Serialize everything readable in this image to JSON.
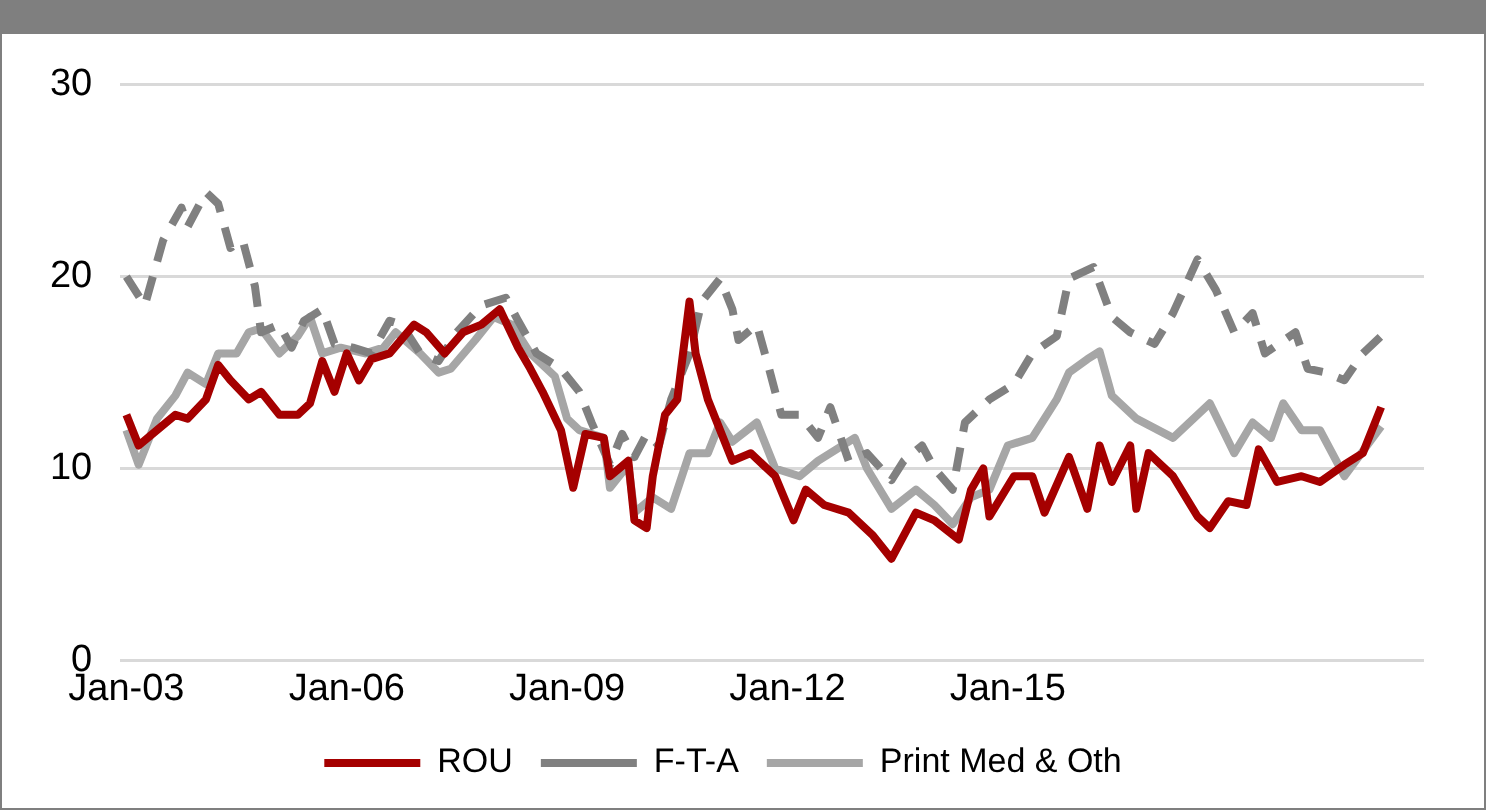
{
  "chart_data": {
    "type": "line",
    "xlim": [
      "2002-12",
      "2020-09"
    ],
    "ylim": [
      0,
      30
    ],
    "yticks": [
      0,
      10,
      20,
      30
    ],
    "xticks": [
      {
        "value": "2003-01",
        "label": "Jan-03"
      },
      {
        "value": "2006-01",
        "label": "Jan-06"
      },
      {
        "value": "2009-01",
        "label": "Jan-09"
      },
      {
        "value": "2012-01",
        "label": "Jan-12"
      },
      {
        "value": "2015-01",
        "label": "Jan-15"
      }
    ],
    "grid": "y",
    "legend": "bottom",
    "marker": "none",
    "series": [
      {
        "name": "ROU",
        "color": "#a50000",
        "line_style": "solid",
        "x": [
          "2003-01",
          "2003-03",
          "2003-06",
          "2003-09",
          "2003-11",
          "2004-02",
          "2004-04",
          "2004-06",
          "2004-09",
          "2004-11",
          "2005-02",
          "2005-05",
          "2005-07",
          "2005-09",
          "2005-11",
          "2006-01",
          "2006-03",
          "2006-05",
          "2006-08",
          "2006-12",
          "2007-02",
          "2007-05",
          "2007-08",
          "2007-11",
          "2008-02",
          "2008-05",
          "2008-07",
          "2008-09",
          "2008-12",
          "2009-02",
          "2009-04",
          "2009-07",
          "2009-08",
          "2009-11",
          "2009-12",
          "2010-02",
          "2010-03",
          "2010-05",
          "2010-07",
          "2010-09",
          "2010-10",
          "2010-12",
          "2011-04",
          "2011-07",
          "2011-11",
          "2012-02",
          "2012-04",
          "2012-07",
          "2012-11",
          "2013-03",
          "2013-06",
          "2013-10",
          "2014-01",
          "2014-05",
          "2014-07",
          "2014-09",
          "2014-10",
          "2015-02",
          "2015-05",
          "2015-07",
          "2015-11",
          "2016-02",
          "2016-04",
          "2016-06",
          "2016-09",
          "2016-10",
          "2016-12",
          "2017-04",
          "2017-08",
          "2017-10",
          "2018-01",
          "2018-04",
          "2018-06",
          "2018-09",
          "2019-01",
          "2019-04",
          "2019-08",
          "2019-11",
          "2020-02"
        ],
        "values": [
          12.8,
          11.2,
          12,
          12.8,
          12.6,
          13.6,
          15.4,
          14.6,
          13.6,
          14,
          12.8,
          12.8,
          13.4,
          15.6,
          14,
          16,
          14.6,
          15.7,
          16,
          17.5,
          17.1,
          16,
          17.1,
          17.5,
          18.3,
          16.3,
          15.2,
          14,
          12,
          9,
          11.8,
          11.6,
          9.6,
          10.4,
          7.3,
          6.9,
          9.6,
          12.8,
          13.6,
          18.7,
          16,
          13.6,
          10.4,
          10.8,
          9.6,
          7.3,
          8.9,
          8.1,
          7.7,
          6.5,
          5.3,
          7.7,
          7.3,
          6.3,
          8.9,
          10,
          7.5,
          9.6,
          9.6,
          7.7,
          10.6,
          7.9,
          11.2,
          9.3,
          11.2,
          7.9,
          10.8,
          9.6,
          7.5,
          6.9,
          8.3,
          8.1,
          11,
          9.3,
          9.6,
          9.3,
          10.2,
          10.8,
          13.2
        ]
      },
      {
        "name": "F-T-A",
        "color": "#808080",
        "line_style": "dashed",
        "x": [
          "2003-01",
          "2003-04",
          "2003-07",
          "2003-10",
          "2003-11",
          "2004-02",
          "2004-04",
          "2004-06",
          "2004-08",
          "2004-10",
          "2004-11",
          "2005-02",
          "2005-04",
          "2005-06",
          "2005-09",
          "2005-11",
          "2006-02",
          "2006-05",
          "2006-08",
          "2006-10",
          "2007-01",
          "2007-04",
          "2007-07",
          "2007-11",
          "2008-03",
          "2008-05",
          "2008-08",
          "2008-12",
          "2009-03",
          "2009-05",
          "2009-08",
          "2009-10",
          "2009-12",
          "2010-02",
          "2010-04",
          "2010-06",
          "2010-09",
          "2010-11",
          "2011-02",
          "2011-04",
          "2011-05",
          "2011-08",
          "2011-10",
          "2011-12",
          "2012-03",
          "2012-06",
          "2012-08",
          "2012-11",
          "2013-02",
          "2013-06",
          "2013-08",
          "2013-11",
          "2014-01",
          "2014-04",
          "2014-06",
          "2014-10",
          "2015-02",
          "2015-05",
          "2015-09",
          "2015-11",
          "2016-03",
          "2016-06",
          "2016-09",
          "2017-01",
          "2017-04",
          "2017-08",
          "2017-11",
          "2018-02",
          "2018-05",
          "2018-07",
          "2018-12",
          "2019-02",
          "2019-05",
          "2019-08",
          "2019-11",
          "2020-02"
        ],
        "values": [
          20,
          18.5,
          21.9,
          23.6,
          22.6,
          24.4,
          23.8,
          21.5,
          21.9,
          19.5,
          17.1,
          17.5,
          16.3,
          17.7,
          18.3,
          16.5,
          16.3,
          16,
          17.7,
          17.5,
          16,
          15.6,
          17.1,
          18.5,
          18.9,
          17.7,
          16,
          15.2,
          14,
          12.4,
          10.2,
          11.8,
          10.6,
          11.8,
          11.2,
          13.6,
          16,
          18.7,
          19.9,
          18.3,
          16.7,
          17.5,
          15.2,
          12.8,
          12.8,
          11.6,
          13.2,
          10.4,
          10.8,
          9.4,
          10.4,
          11.2,
          10,
          8.9,
          12.4,
          13.6,
          14.4,
          16,
          16.9,
          19.9,
          20.5,
          17.9,
          17.1,
          16.5,
          18.1,
          20.9,
          19.3,
          17.1,
          18.1,
          16,
          17.1,
          15.2,
          15,
          14.6,
          16,
          16.9
        ]
      },
      {
        "name": "Print Med & Oth",
        "color": "#a6a6a6",
        "line_style": "solid",
        "x": [
          "2003-01",
          "2003-03",
          "2003-06",
          "2003-09",
          "2003-11",
          "2004-02",
          "2004-04",
          "2004-07",
          "2004-09",
          "2004-11",
          "2005-02",
          "2005-05",
          "2005-07",
          "2005-09",
          "2005-12",
          "2006-04",
          "2006-07",
          "2006-09",
          "2007-01",
          "2007-04",
          "2007-06",
          "2007-10",
          "2008-01",
          "2008-04",
          "2008-07",
          "2008-11",
          "2009-01",
          "2009-03",
          "2009-07",
          "2009-08",
          "2009-11",
          "2009-12",
          "2010-03",
          "2010-06",
          "2010-09",
          "2010-12",
          "2011-02",
          "2011-04",
          "2011-08",
          "2011-11",
          "2012-03",
          "2012-06",
          "2012-12",
          "2013-02",
          "2013-06",
          "2013-10",
          "2014-01",
          "2014-04",
          "2014-07",
          "2014-10",
          "2015-01",
          "2015-05",
          "2015-09",
          "2015-11",
          "2016-02",
          "2016-04",
          "2016-06",
          "2016-10",
          "2017-04",
          "2017-08",
          "2017-10",
          "2018-02",
          "2018-05",
          "2018-08",
          "2018-10",
          "2019-01",
          "2019-04",
          "2019-08",
          "2020-02"
        ],
        "values": [
          12,
          10.2,
          12.6,
          13.8,
          15,
          14.4,
          16,
          16,
          17.1,
          17.3,
          16,
          16.9,
          17.9,
          16,
          16.3,
          16,
          16.3,
          17.1,
          16,
          15,
          15.2,
          16.7,
          17.9,
          17.5,
          16,
          14.8,
          12.6,
          12,
          11.6,
          9,
          10.2,
          7.7,
          8.5,
          7.9,
          10.8,
          10.8,
          12.4,
          11.4,
          12.4,
          10,
          9.6,
          10.4,
          11.6,
          10,
          7.9,
          8.9,
          8.1,
          7.1,
          8.5,
          8.9,
          11.2,
          11.6,
          13.6,
          15,
          15.7,
          16.1,
          13.8,
          12.6,
          11.6,
          12.8,
          13.4,
          10.8,
          12.4,
          11.6,
          13.4,
          12,
          12,
          9.6,
          12.2
        ]
      }
    ]
  }
}
